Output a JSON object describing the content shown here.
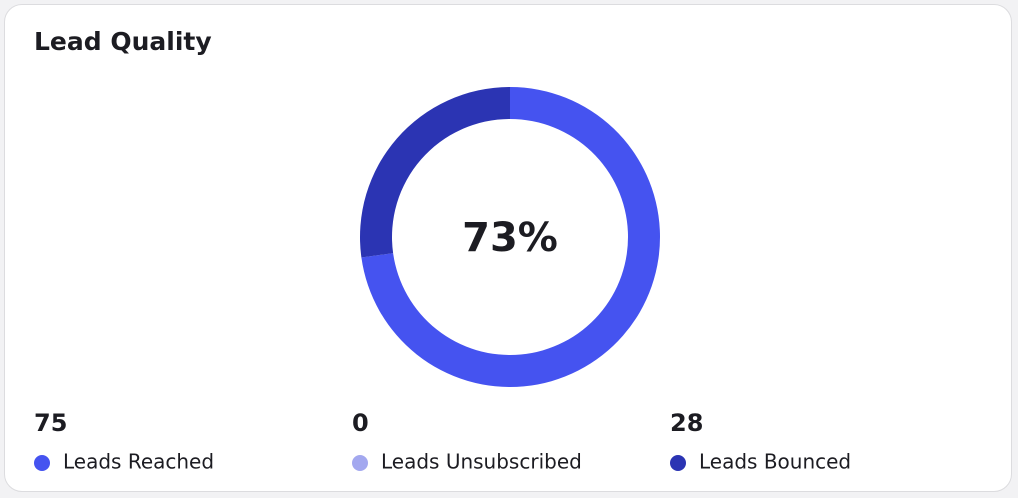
{
  "chart_data": {
    "type": "donut",
    "title": "Lead Quality",
    "center_label": "73%",
    "categories": [
      "Leads Reached",
      "Leads Unsubscribed",
      "Leads Bounced"
    ],
    "values": [
      75,
      0,
      28
    ],
    "colors": [
      "#4553f0",
      "#a3a8ef",
      "#2b34b3"
    ]
  }
}
